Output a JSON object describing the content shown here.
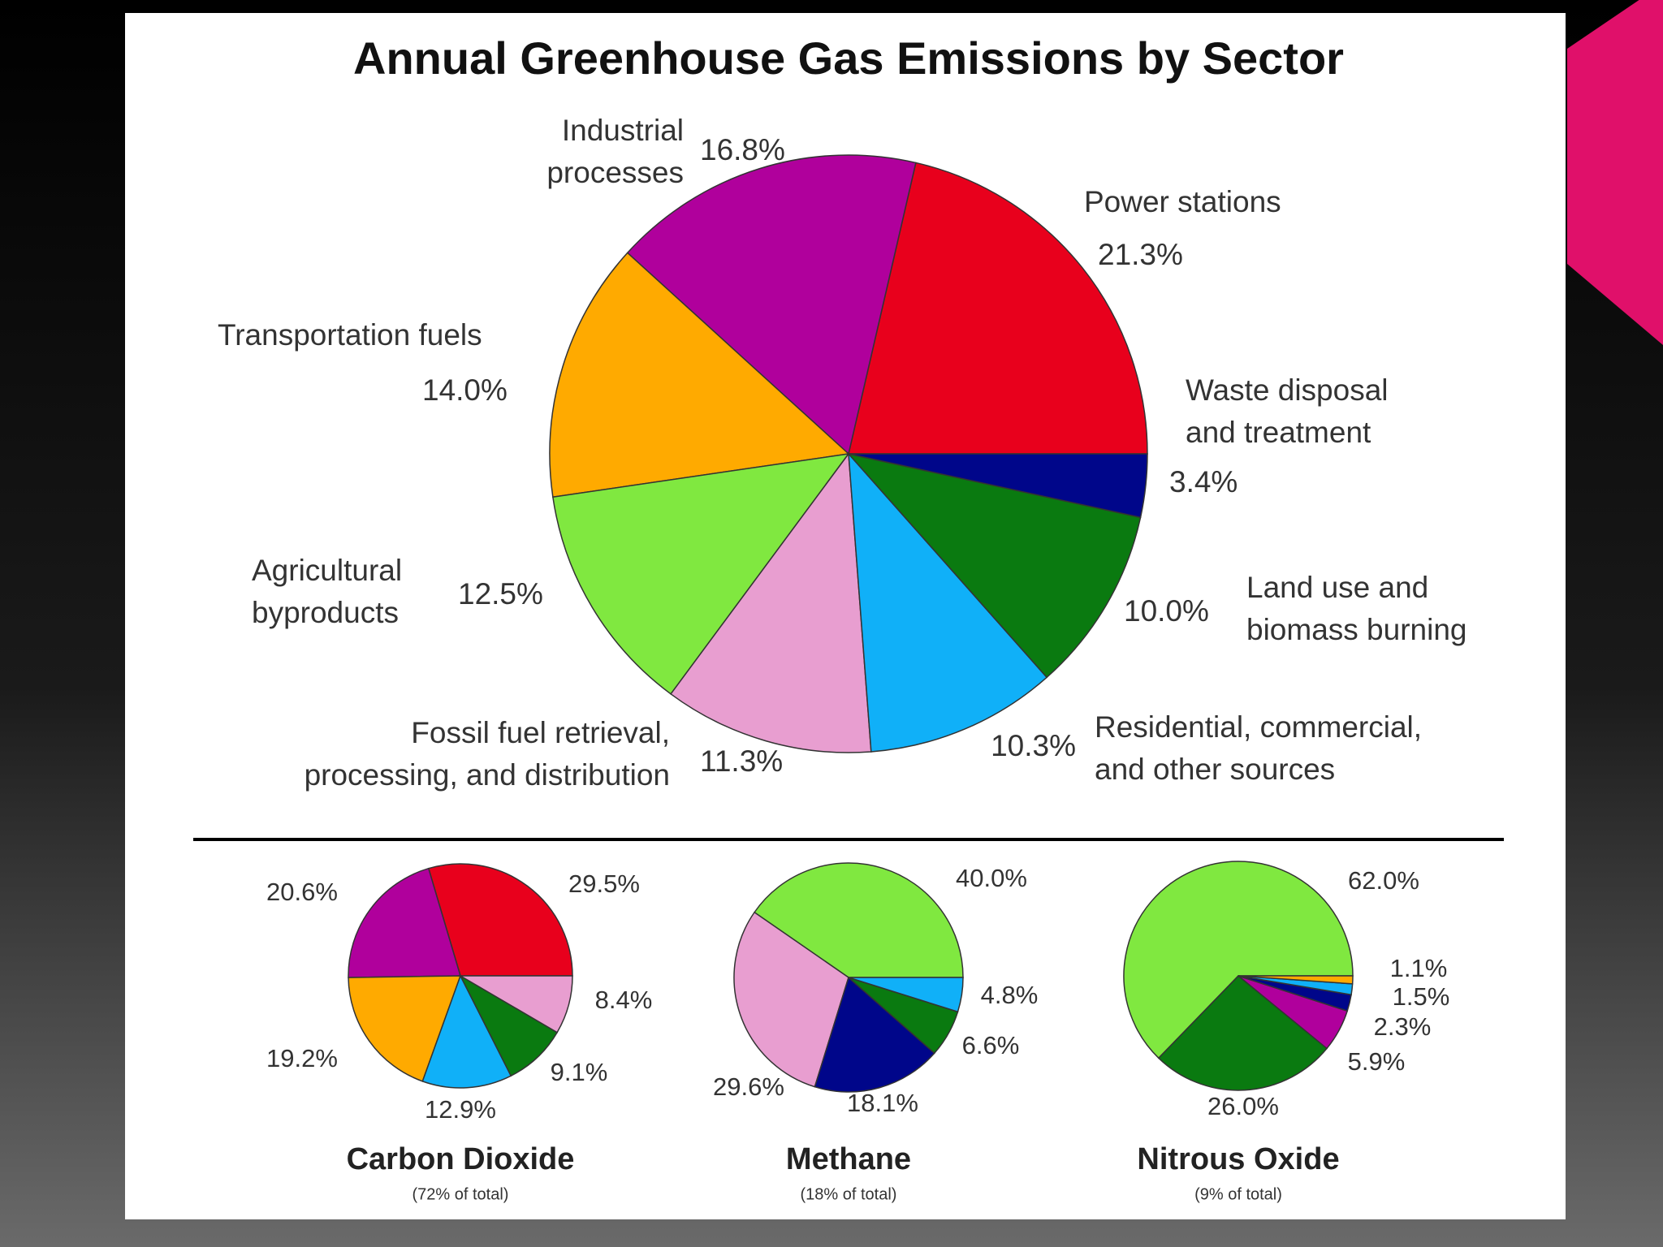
{
  "chart_data": [
    {
      "type": "pie",
      "title": "Annual Greenhouse Gas Emissions by Sector",
      "categories": [
        [
          "Power stations"
        ],
        [
          "Industrial",
          "processes"
        ],
        [
          "Transportation fuels"
        ],
        [
          "Agricultural",
          "byproducts"
        ],
        [
          "Fossil fuel retrieval,",
          "processing, and distribution"
        ],
        [
          "Residential, commercial,",
          "and other sources"
        ],
        [
          "Land use and",
          "biomass burning"
        ],
        [
          "Waste disposal",
          "and treatment"
        ]
      ],
      "values": [
        21.3,
        16.8,
        14.0,
        12.5,
        11.3,
        10.3,
        10.0,
        3.4
      ],
      "value_labels": [
        "21.3%",
        "16.8%",
        "14.0%",
        "12.5%",
        "11.3%",
        "10.3%",
        "10.0%",
        "3.4%"
      ],
      "colors": [
        "#e8001c",
        "#b0009c",
        "#ffaa00",
        "#80e840",
        "#e89ed0",
        "#10b0f8",
        "#0a7a10",
        "#00068a"
      ]
    },
    {
      "type": "pie",
      "title": "Carbon Dioxide",
      "subtitle": "(72% of total)",
      "values": [
        29.5,
        20.6,
        19.2,
        12.9,
        9.1,
        8.4
      ],
      "value_labels": [
        "29.5%",
        "20.6%",
        "19.2%",
        "12.9%",
        "9.1%",
        "8.4%"
      ],
      "colors": [
        "#e8001c",
        "#b0009c",
        "#ffaa00",
        "#10b0f8",
        "#0a7a10",
        "#e89ed0"
      ]
    },
    {
      "type": "pie",
      "title": "Methane",
      "subtitle": "(18% of total)",
      "values": [
        40.0,
        29.6,
        18.1,
        6.6,
        4.8
      ],
      "value_labels": [
        "40.0%",
        "29.6%",
        "18.1%",
        "6.6%",
        "4.8%"
      ],
      "colors": [
        "#80e840",
        "#e89ed0",
        "#00068a",
        "#0a7a10",
        "#10b0f8"
      ]
    },
    {
      "type": "pie",
      "title": "Nitrous Oxide",
      "subtitle": "(9% of total)",
      "values": [
        62.0,
        26.0,
        5.9,
        2.3,
        1.5,
        1.1
      ],
      "value_labels": [
        "62.0%",
        "26.0%",
        "5.9%",
        "2.3%",
        "1.5%",
        "1.1%"
      ],
      "colors": [
        "#80e840",
        "#0a7a10",
        "#b0009c",
        "#00068a",
        "#10b0f8",
        "#ffaa00"
      ]
    }
  ]
}
